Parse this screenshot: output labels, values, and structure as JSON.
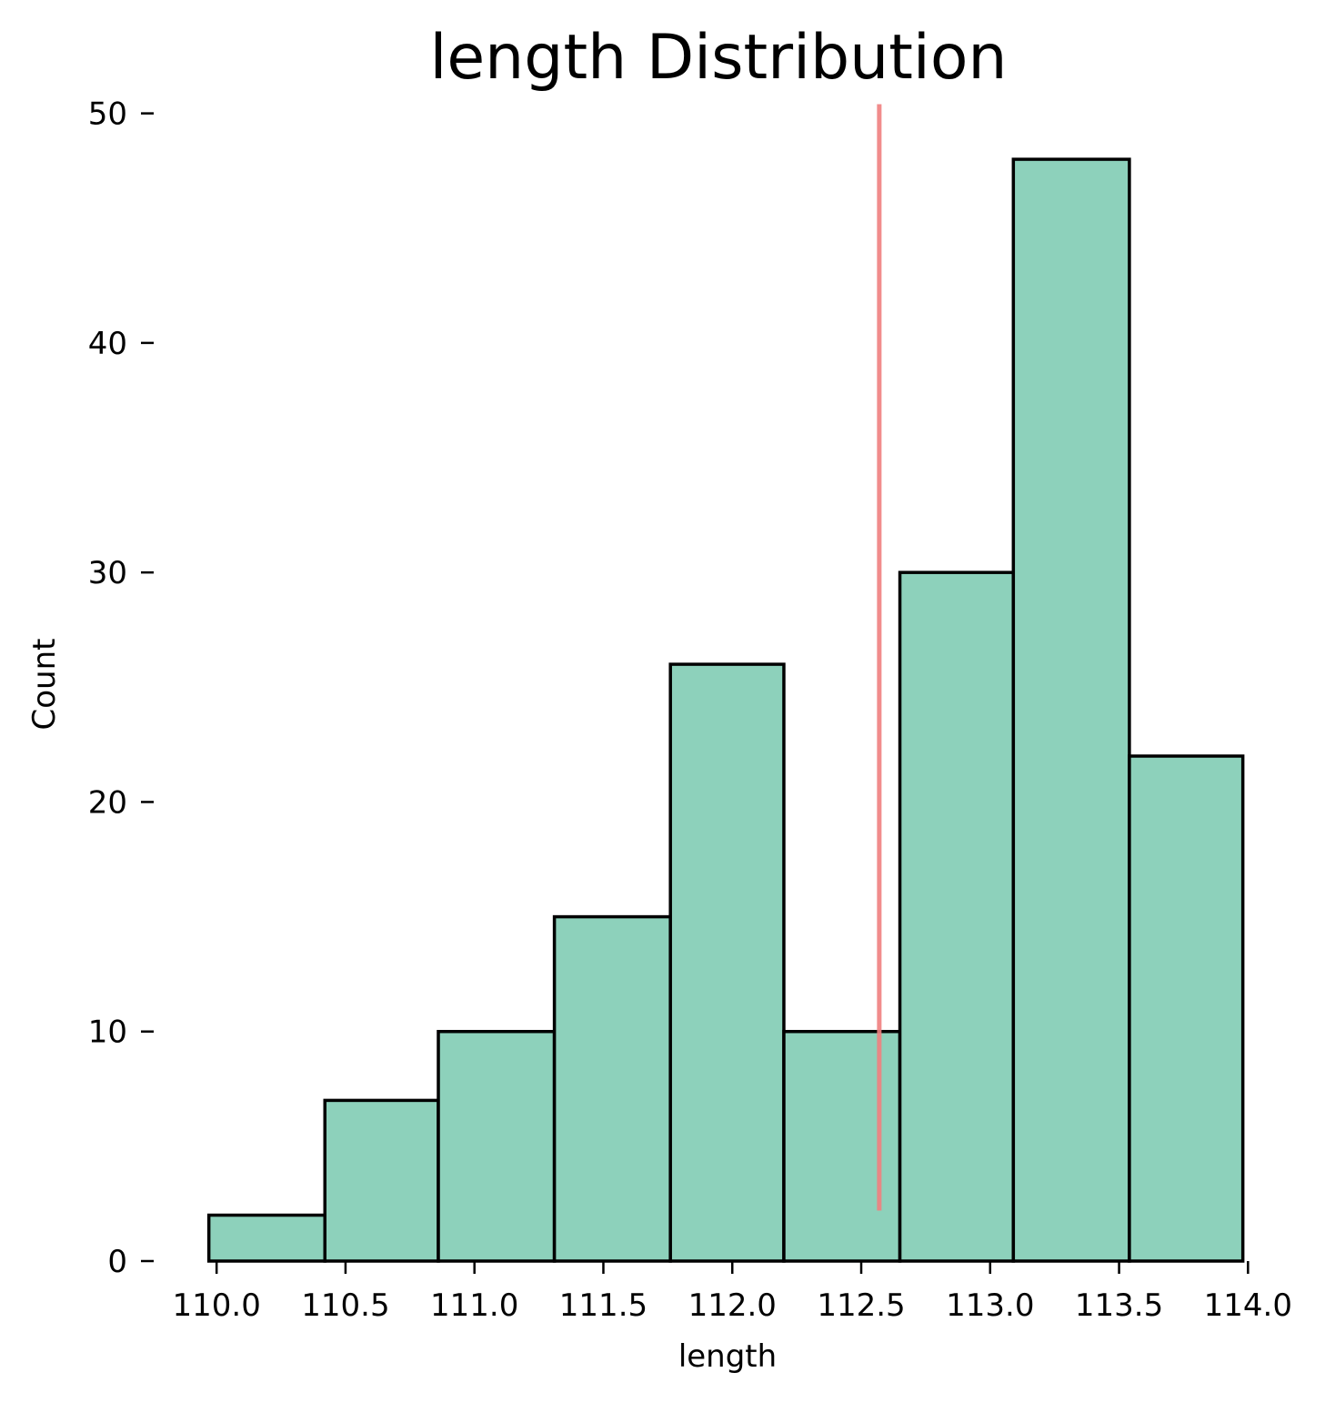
{
  "chart_data": {
    "type": "bar",
    "title": "length Distribution",
    "xlabel": "length",
    "ylabel": "Count",
    "xlim": [
      109.95,
      114.02
    ],
    "ylim": [
      0,
      50.5
    ],
    "x_ticks": [
      "110.0",
      "110.5",
      "111.0",
      "111.5",
      "112.0",
      "112.5",
      "113.0",
      "113.5",
      "114.0"
    ],
    "y_ticks": [
      "0",
      "10",
      "20",
      "30",
      "40",
      "50"
    ],
    "bins": [
      {
        "x0": 109.97,
        "x1": 110.42,
        "count": 2
      },
      {
        "x0": 110.42,
        "x1": 110.86,
        "count": 7
      },
      {
        "x0": 110.86,
        "x1": 111.31,
        "count": 10
      },
      {
        "x0": 111.31,
        "x1": 111.76,
        "count": 15
      },
      {
        "x0": 111.76,
        "x1": 112.2,
        "count": 26
      },
      {
        "x0": 112.2,
        "x1": 112.65,
        "count": 10
      },
      {
        "x0": 112.65,
        "x1": 113.09,
        "count": 30
      },
      {
        "x0": 113.09,
        "x1": 113.54,
        "count": 48
      },
      {
        "x0": 113.54,
        "x1": 113.98,
        "count": 22
      }
    ],
    "vline": {
      "x": 112.57,
      "y_from": 2.2,
      "y_to": 50.4,
      "color": "#f08080"
    },
    "bar_color": "#8dd1bb",
    "edge_color": "#000000",
    "grid": false,
    "legend": "none"
  }
}
